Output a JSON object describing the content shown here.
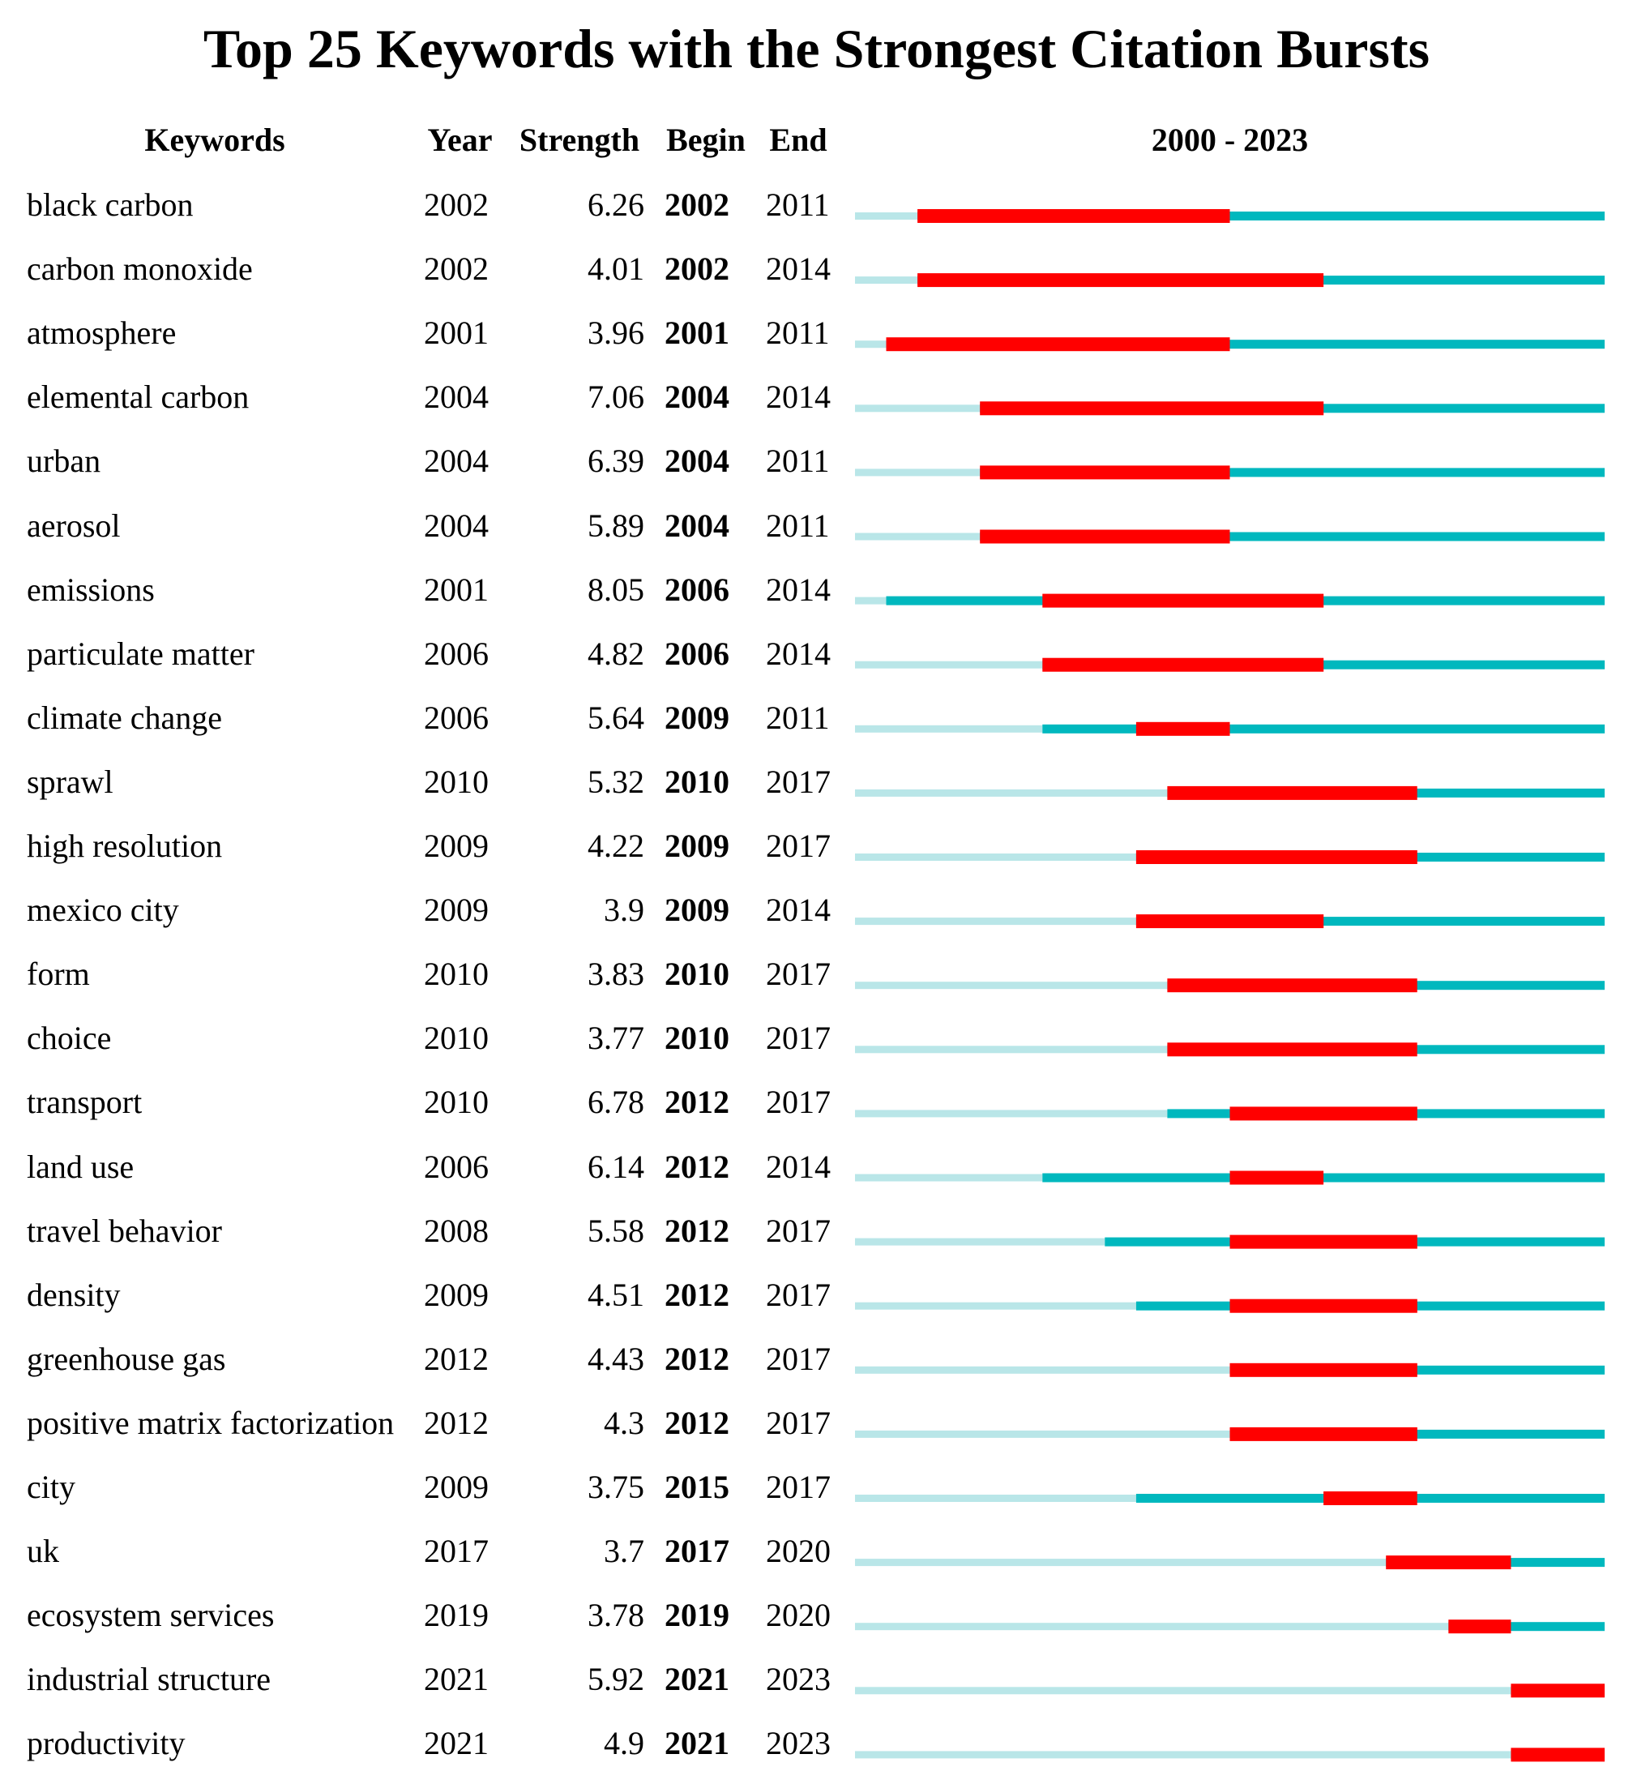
{
  "chart_data": {
    "type": "table",
    "title": "Top 25 Keywords with the Strongest Citation Bursts",
    "columns": [
      "Keywords",
      "Year",
      "Strength",
      "Begin",
      "End"
    ],
    "range_label": "2000 - 2023",
    "range_start": 2000,
    "range_end": 2023,
    "rows": [
      {
        "keyword": "black carbon",
        "year": "2002",
        "strength": "6.26",
        "begin": "2002",
        "end": "2011"
      },
      {
        "keyword": "carbon monoxide",
        "year": "2002",
        "strength": "4.01",
        "begin": "2002",
        "end": "2014"
      },
      {
        "keyword": "atmosphere",
        "year": "2001",
        "strength": "3.96",
        "begin": "2001",
        "end": "2011"
      },
      {
        "keyword": "elemental carbon",
        "year": "2004",
        "strength": "7.06",
        "begin": "2004",
        "end": "2014"
      },
      {
        "keyword": "urban",
        "year": "2004",
        "strength": "6.39",
        "begin": "2004",
        "end": "2011"
      },
      {
        "keyword": "aerosol",
        "year": "2004",
        "strength": "5.89",
        "begin": "2004",
        "end": "2011"
      },
      {
        "keyword": "emissions",
        "year": "2001",
        "strength": "8.05",
        "begin": "2006",
        "end": "2014"
      },
      {
        "keyword": "particulate matter",
        "year": "2006",
        "strength": "4.82",
        "begin": "2006",
        "end": "2014"
      },
      {
        "keyword": "climate change",
        "year": "2006",
        "strength": "5.64",
        "begin": "2009",
        "end": "2011"
      },
      {
        "keyword": "sprawl",
        "year": "2010",
        "strength": "5.32",
        "begin": "2010",
        "end": "2017"
      },
      {
        "keyword": "high resolution",
        "year": "2009",
        "strength": "4.22",
        "begin": "2009",
        "end": "2017"
      },
      {
        "keyword": "mexico city",
        "year": "2009",
        "strength": "3.9",
        "begin": "2009",
        "end": "2014"
      },
      {
        "keyword": "form",
        "year": "2010",
        "strength": "3.83",
        "begin": "2010",
        "end": "2017"
      },
      {
        "keyword": "choice",
        "year": "2010",
        "strength": "3.77",
        "begin": "2010",
        "end": "2017"
      },
      {
        "keyword": "transport",
        "year": "2010",
        "strength": "6.78",
        "begin": "2012",
        "end": "2017"
      },
      {
        "keyword": "land use",
        "year": "2006",
        "strength": "6.14",
        "begin": "2012",
        "end": "2014"
      },
      {
        "keyword": "travel behavior",
        "year": "2008",
        "strength": "5.58",
        "begin": "2012",
        "end": "2017"
      },
      {
        "keyword": "density",
        "year": "2009",
        "strength": "4.51",
        "begin": "2012",
        "end": "2017"
      },
      {
        "keyword": "greenhouse gas",
        "year": "2012",
        "strength": "4.43",
        "begin": "2012",
        "end": "2017"
      },
      {
        "keyword": "positive matrix factorization",
        "year": "2012",
        "strength": "4.3",
        "begin": "2012",
        "end": "2017"
      },
      {
        "keyword": "city",
        "year": "2009",
        "strength": "3.75",
        "begin": "2015",
        "end": "2017"
      },
      {
        "keyword": "uk",
        "year": "2017",
        "strength": "3.7",
        "begin": "2017",
        "end": "2020"
      },
      {
        "keyword": "ecosystem services",
        "year": "2019",
        "strength": "3.78",
        "begin": "2019",
        "end": "2020"
      },
      {
        "keyword": "industrial structure",
        "year": "2021",
        "strength": "5.92",
        "begin": "2021",
        "end": "2023"
      },
      {
        "keyword": "productivity",
        "year": "2021",
        "strength": "4.9",
        "begin": "2021",
        "end": "2023"
      }
    ],
    "colors": {
      "before": "#b9e6e8",
      "active": "#00b8be",
      "burst": "#ff0000"
    }
  }
}
